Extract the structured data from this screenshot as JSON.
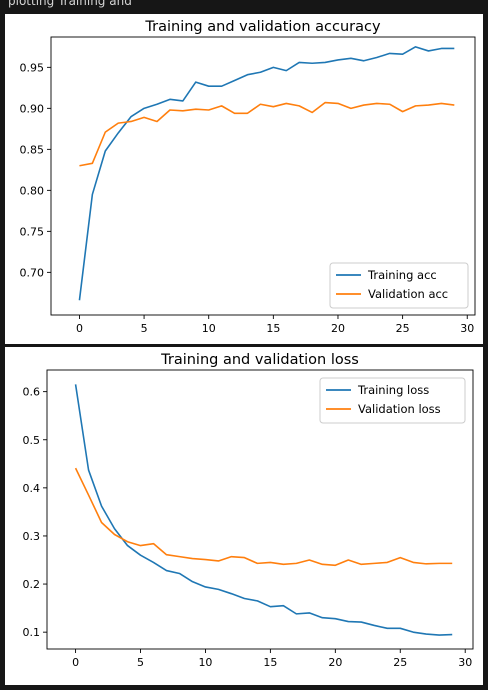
{
  "top_text": "plotting Training and",
  "colors": {
    "training": "#1f77b4",
    "validation": "#ff7f0e",
    "background": "#161616"
  },
  "chart_data": [
    {
      "type": "line",
      "title": "Training and validation accuracy",
      "xlabel": "",
      "ylabel": "",
      "xlim": [
        -2.2,
        30.6
      ],
      "ylim": [
        0.648,
        0.987
      ],
      "xticks": [
        0,
        5,
        10,
        15,
        20,
        25,
        30
      ],
      "yticks": [
        0.7,
        0.75,
        0.8,
        0.85,
        0.9,
        0.95
      ],
      "yticklabels": [
        "0.70",
        "0.75",
        "0.80",
        "0.85",
        "0.90",
        "0.95"
      ],
      "grid": false,
      "legend_position": "lower-right",
      "x": [
        0,
        1,
        2,
        3,
        4,
        5,
        6,
        7,
        8,
        9,
        10,
        11,
        12,
        13,
        14,
        15,
        16,
        17,
        18,
        19,
        20,
        21,
        22,
        23,
        24,
        25,
        26,
        27,
        28,
        29
      ],
      "series": [
        {
          "name": "Training acc",
          "color": "#1f77b4",
          "values": [
            0.666,
            0.795,
            0.848,
            0.87,
            0.89,
            0.9,
            0.905,
            0.911,
            0.909,
            0.932,
            0.927,
            0.927,
            0.934,
            0.941,
            0.944,
            0.95,
            0.946,
            0.956,
            0.955,
            0.956,
            0.959,
            0.961,
            0.958,
            0.962,
            0.967,
            0.966,
            0.975,
            0.97,
            0.973,
            0.973
          ]
        },
        {
          "name": "Validation acc",
          "color": "#ff7f0e",
          "values": [
            0.83,
            0.833,
            0.871,
            0.882,
            0.884,
            0.889,
            0.884,
            0.898,
            0.897,
            0.899,
            0.898,
            0.903,
            0.894,
            0.894,
            0.905,
            0.902,
            0.906,
            0.903,
            0.895,
            0.907,
            0.906,
            0.9,
            0.904,
            0.906,
            0.905,
            0.896,
            0.903,
            0.904,
            0.906,
            0.904
          ]
        }
      ]
    },
    {
      "type": "line",
      "title": "Training and validation loss",
      "xlabel": "",
      "ylabel": "",
      "xlim": [
        -2.2,
        30.6
      ],
      "ylim": [
        0.065,
        0.645
      ],
      "xticks": [
        0,
        5,
        10,
        15,
        20,
        25,
        30
      ],
      "yticks": [
        0.1,
        0.2,
        0.3,
        0.4,
        0.5,
        0.6
      ],
      "yticklabels": [
        "0.1",
        "0.2",
        "0.3",
        "0.4",
        "0.5",
        "0.6"
      ],
      "grid": false,
      "legend_position": "upper-right",
      "x": [
        0,
        1,
        2,
        3,
        4,
        5,
        6,
        7,
        8,
        9,
        10,
        11,
        12,
        13,
        14,
        15,
        16,
        17,
        18,
        19,
        20,
        21,
        22,
        23,
        24,
        25,
        26,
        27,
        28,
        29
      ],
      "series": [
        {
          "name": "Training loss",
          "color": "#1f77b4",
          "values": [
            0.615,
            0.437,
            0.362,
            0.315,
            0.28,
            0.26,
            0.245,
            0.228,
            0.222,
            0.205,
            0.194,
            0.189,
            0.18,
            0.17,
            0.165,
            0.153,
            0.155,
            0.138,
            0.14,
            0.13,
            0.128,
            0.122,
            0.121,
            0.114,
            0.108,
            0.108,
            0.1,
            0.096,
            0.094,
            0.095
          ]
        },
        {
          "name": "Validation loss",
          "color": "#ff7f0e",
          "values": [
            0.441,
            0.385,
            0.328,
            0.303,
            0.288,
            0.28,
            0.284,
            0.261,
            0.257,
            0.253,
            0.251,
            0.248,
            0.257,
            0.255,
            0.243,
            0.245,
            0.241,
            0.243,
            0.25,
            0.241,
            0.239,
            0.25,
            0.241,
            0.243,
            0.245,
            0.255,
            0.245,
            0.242,
            0.243,
            0.243
          ]
        }
      ]
    }
  ]
}
